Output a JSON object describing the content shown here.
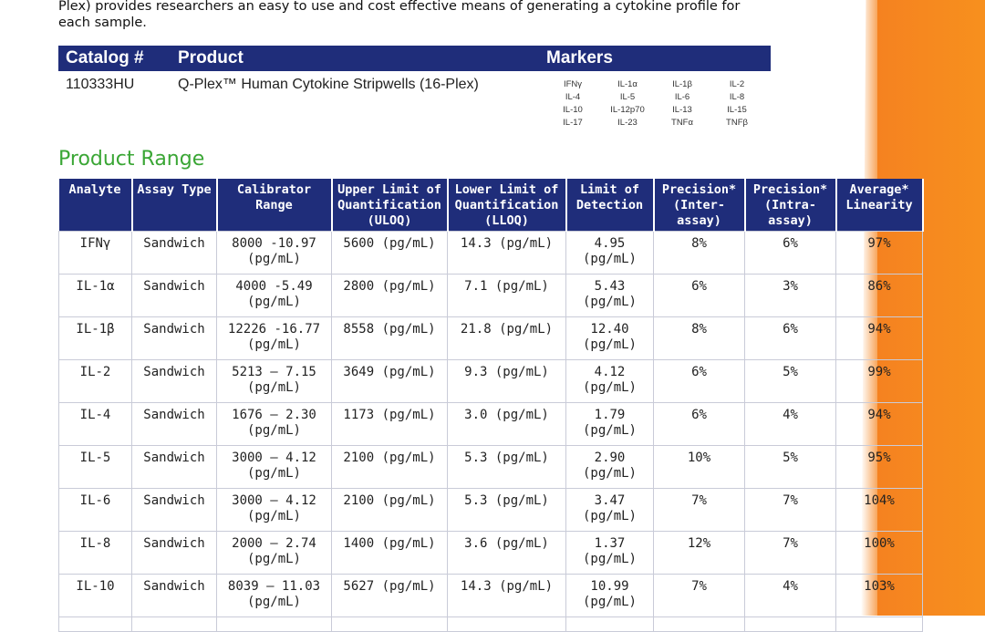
{
  "intro": {
    "line1": "Plex) provides researchers an easy to use and cost effective means of generating a cytokine profile for",
    "line2": "each sample."
  },
  "catalog": {
    "headers": {
      "catalog": "Catalog #",
      "product": "Product",
      "markers": "Markers"
    },
    "row": {
      "catalog_no": "110333HU",
      "product": "Q-Plex™ Human Cytokine Stripwells (16-Plex)",
      "markers": [
        "IFNγ",
        "IL-1α",
        "IL-1β",
        "IL-2",
        "IL-4",
        "IL-5",
        "IL-6",
        "IL-8",
        "IL-10",
        "IL-12p70",
        "IL-13",
        "IL-15",
        "IL-17",
        "IL-23",
        "TNFα",
        "TNFβ"
      ]
    }
  },
  "product_range": {
    "title": "Product Range",
    "headers": [
      "Analyte",
      "Assay Type",
      "Calibrator Range",
      "Upper Limit of Quantification (ULOQ)",
      "Lower Limit of Quantification (LLOQ)",
      "Limit of Detection",
      "Precision* (Inter-assay)",
      "Precision* (Intra-assay)",
      "Average* Linearity"
    ],
    "rows": [
      [
        "IFNγ",
        "Sandwich",
        "8000 -10.97 (pg/mL)",
        "5600 (pg/mL)",
        "14.3 (pg/mL)",
        "4.95 (pg/mL)",
        "8%",
        "6%",
        "97%"
      ],
      [
        "IL-1α",
        "Sandwich",
        "4000 -5.49 (pg/mL)",
        "2800 (pg/mL)",
        "7.1 (pg/mL)",
        "5.43 (pg/mL)",
        "6%",
        "3%",
        "86%"
      ],
      [
        "IL-1β",
        "Sandwich",
        "12226 -16.77 (pg/mL)",
        "8558 (pg/mL)",
        "21.8 (pg/mL)",
        "12.40 (pg/mL)",
        "8%",
        "6%",
        "94%"
      ],
      [
        "IL-2",
        "Sandwich",
        "5213 – 7.15 (pg/mL)",
        "3649 (pg/mL)",
        "9.3 (pg/mL)",
        "4.12 (pg/mL)",
        "6%",
        "5%",
        "99%"
      ],
      [
        "IL-4",
        "Sandwich",
        "1676 – 2.30 (pg/mL)",
        "1173 (pg/mL)",
        "3.0 (pg/mL)",
        "1.79 (pg/mL)",
        "6%",
        "4%",
        "94%"
      ],
      [
        "IL-5",
        "Sandwich",
        "3000 – 4.12 (pg/mL)",
        "2100 (pg/mL)",
        "5.3 (pg/mL)",
        "2.90 (pg/mL)",
        "10%",
        "5%",
        "95%"
      ],
      [
        "IL-6",
        "Sandwich",
        "3000 – 4.12 (pg/mL)",
        "2100 (pg/mL)",
        "5.3 (pg/mL)",
        "3.47 (pg/mL)",
        "7%",
        "7%",
        "104%"
      ],
      [
        "IL-8",
        "Sandwich",
        "2000 – 2.74 (pg/mL)",
        "1400 (pg/mL)",
        "3.6 (pg/mL)",
        "1.37 (pg/mL)",
        "12%",
        "7%",
        "100%"
      ],
      [
        "IL-10",
        "Sandwich",
        "8039 – 11.03 (pg/mL)",
        "5627 (pg/mL)",
        "14.3 (pg/mL)",
        "10.99 (pg/mL)",
        "7%",
        "4%",
        "103%"
      ]
    ]
  },
  "colors": {
    "header_bg": "#1f2d7a",
    "section_title": "#3aa635",
    "side_strip": "#f58220"
  }
}
